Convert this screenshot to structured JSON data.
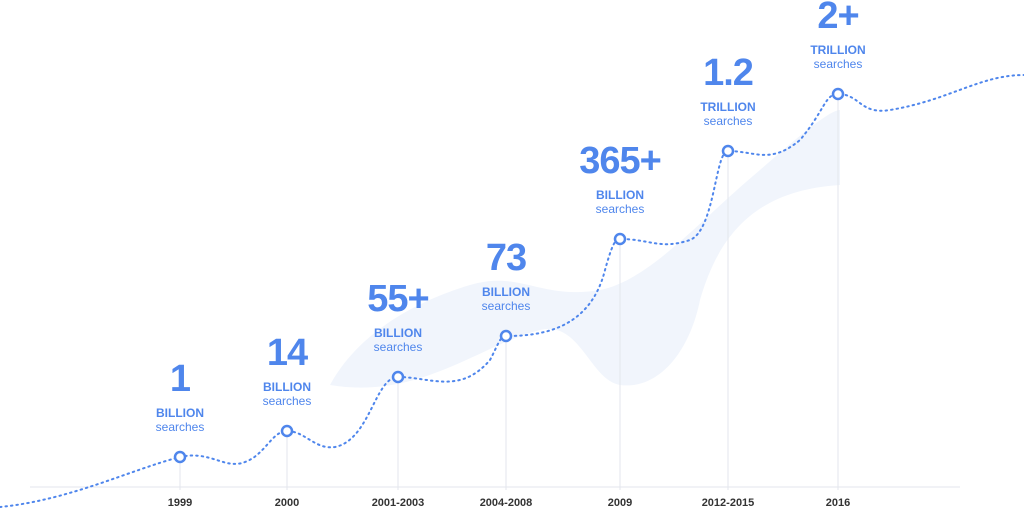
{
  "milestones": [
    {
      "year": "1999",
      "number": "1",
      "unit": "BILLION",
      "label": "searches"
    },
    {
      "year": "2000",
      "number": "14",
      "unit": "BILLION",
      "label": "searches"
    },
    {
      "year": "2001-2003",
      "number": "55+",
      "unit": "BILLION",
      "label": "searches"
    },
    {
      "year": "2004-2008",
      "number": "73",
      "unit": "BILLION",
      "label": "searches"
    },
    {
      "year": "2009",
      "number": "365+",
      "unit": "BILLION",
      "label": "searches"
    },
    {
      "year": "2012-2015",
      "number": "1.2",
      "unit": "TRILLION",
      "label": "searches"
    },
    {
      "year": "2016",
      "number": "2+",
      "unit": "TRILLION",
      "label": "searches"
    }
  ]
}
